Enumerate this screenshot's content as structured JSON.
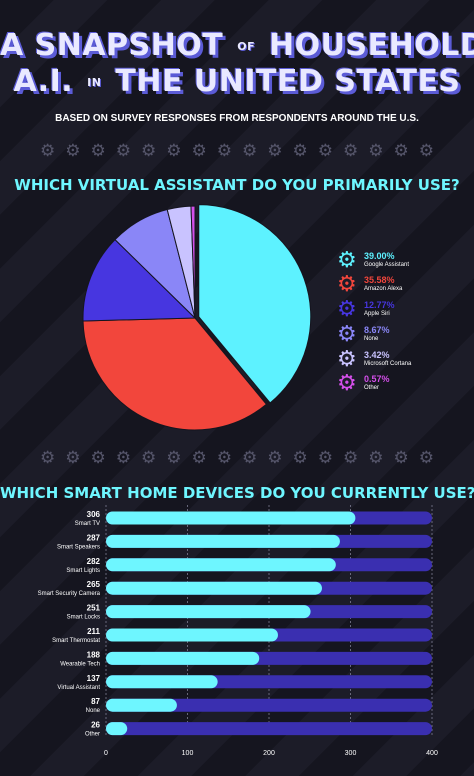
{
  "header": {
    "title_line1_a": "A Snapshot",
    "title_line1_of": "of",
    "title_line1_b": "Household",
    "title_line2_a": "A.I.",
    "title_line2_in": "in",
    "title_line2_b": "The United States",
    "subtitle": "Based on survey responses from respondents around the U.S."
  },
  "icons": {
    "divider": "gear-icon"
  },
  "colors": {
    "accent_cyan": "#6ef6ff",
    "bar_bg": "#3a2fb0"
  },
  "chart_data": [
    {
      "type": "pie",
      "title": "Which virtual assistant do you primarily use?",
      "categories": [
        "Google Assistant",
        "Amazon Alexa",
        "Apple Siri",
        "None",
        "Microsoft Cortana",
        "Other"
      ],
      "values": [
        39.0,
        35.58,
        12.77,
        8.67,
        3.42,
        0.57
      ],
      "value_labels": [
        "39.00%",
        "35.58%",
        "12.77%",
        "8.67%",
        "3.42%",
        "0.57%"
      ],
      "colors": [
        "#5df2ff",
        "#f2463c",
        "#4736e0",
        "#8a86f7",
        "#c9c3ff",
        "#d44fea"
      ]
    },
    {
      "type": "bar",
      "orientation": "horizontal",
      "title": "Which smart home devices do you currently use?",
      "categories": [
        "Smart TV",
        "Smart Speakers",
        "Smart Lights",
        "Smart Security Camera",
        "Smart Locks",
        "Smart Thermostat",
        "Wearable Tech",
        "Virtual Assistant",
        "None",
        "Other"
      ],
      "values": [
        306,
        287,
        282,
        265,
        251,
        211,
        188,
        137,
        87,
        26
      ],
      "xlim": [
        0,
        400
      ],
      "xticks": [
        "0",
        "100",
        "200",
        "300",
        "400"
      ],
      "grid": true
    }
  ]
}
